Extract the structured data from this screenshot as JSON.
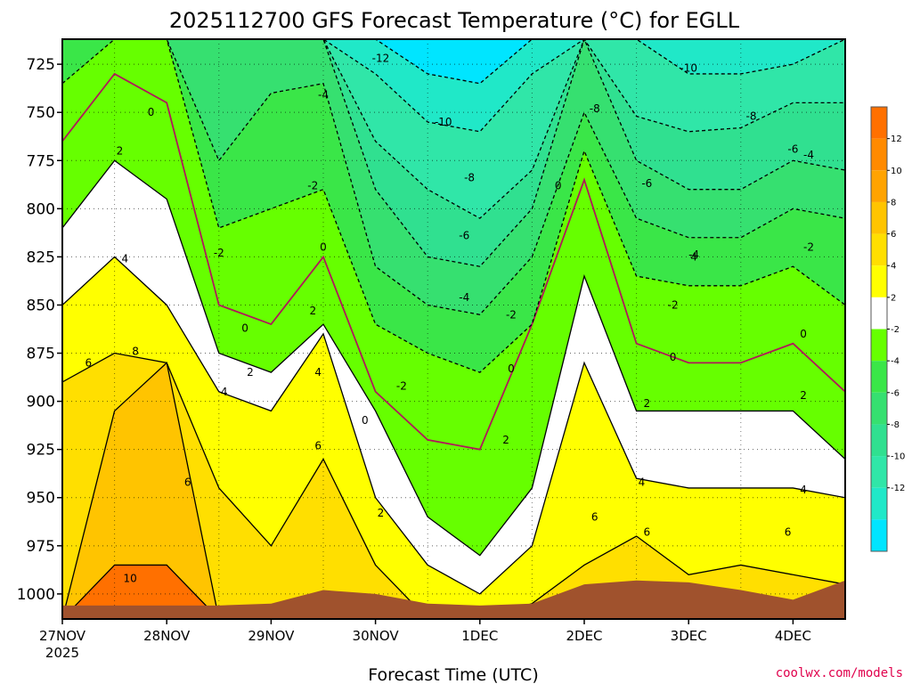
{
  "chart_data": {
    "type": "heatmap",
    "title": "2025112700 GFS Forecast Temperature (°C) for EGLL",
    "xlabel": "Forecast Time (UTC)",
    "ylabel": "",
    "credit": "coolwx.com/models",
    "x_ticks": [
      "27NOV",
      "28NOV",
      "29NOV",
      "30NOV",
      "1DEC",
      "2DEC",
      "3DEC",
      "4DEC"
    ],
    "x_year": "2025",
    "x_range_days": [
      0,
      7.5
    ],
    "y_ticks": [
      725,
      750,
      775,
      800,
      825,
      850,
      875,
      900,
      925,
      950,
      975,
      1000
    ],
    "y_range_hpa": [
      1013,
      712
    ],
    "y_axis": "pressure (hPa), inverted",
    "grid": true,
    "contour_interval": 2,
    "colorbar": {
      "levels": [
        -14,
        -12,
        -10,
        -8,
        -6,
        -4,
        -2,
        2,
        4,
        6,
        8,
        10,
        12,
        14
      ],
      "labels": [
        "12",
        "10",
        "8",
        "6",
        "4",
        "2",
        "-2",
        "-4",
        "-6",
        "-8",
        "-10",
        "-12"
      ],
      "colors": [
        "#00e5ff",
        "#20e8c8",
        "#30e6a8",
        "#30e090",
        "#36e070",
        "#3ae648",
        "#66ff00",
        "#ffffff",
        "#ffff00",
        "#ffdf00",
        "#ffc400",
        "#ffa300",
        "#ff8a00",
        "#ff7000"
      ]
    },
    "terrain_color": "#a0522d",
    "series": [
      {
        "level": 10,
        "x": [
          0.0,
          0.5,
          1.0,
          1.5,
          2.0,
          2.5,
          3.0,
          3.5,
          4.0,
          4.5,
          5.0,
          5.5,
          6.0,
          6.5,
          7.0,
          7.5
        ],
        "p": [
          1013,
          985,
          985,
          1013,
          1013,
          1013,
          1013,
          1013,
          1013,
          1013,
          1013,
          1013,
          1013,
          1013,
          1013,
          1013
        ]
      },
      {
        "level": 8,
        "x": [
          0.0,
          0.5,
          1.0,
          1.5,
          2.0,
          2.5,
          3.0,
          3.5,
          4.0,
          4.5,
          5.0,
          5.5,
          6.0,
          6.5,
          7.0,
          7.5
        ],
        "p": [
          1013,
          905,
          880,
          1013,
          1013,
          1013,
          1013,
          1013,
          1013,
          1013,
          1013,
          1013,
          1013,
          1013,
          1013,
          1013
        ]
      },
      {
        "level": 6,
        "x": [
          0.0,
          0.5,
          1.0,
          1.5,
          2.0,
          2.5,
          3.0,
          3.5,
          4.0,
          4.5,
          5.0,
          5.5,
          6.0,
          6.5,
          7.0,
          7.5
        ],
        "p": [
          890,
          875,
          880,
          945,
          975,
          930,
          985,
          1013,
          1013,
          1005,
          985,
          970,
          990,
          985,
          990,
          995
        ]
      },
      {
        "level": 4,
        "x": [
          0.0,
          0.5,
          1.0,
          1.5,
          2.0,
          2.5,
          3.0,
          3.5,
          4.0,
          4.5,
          5.0,
          5.5,
          6.0,
          6.5,
          7.0,
          7.5
        ],
        "p": [
          850,
          825,
          850,
          895,
          905,
          865,
          950,
          985,
          1000,
          975,
          880,
          940,
          945,
          945,
          945,
          950
        ]
      },
      {
        "level": 2,
        "x": [
          0.0,
          0.5,
          1.0,
          1.5,
          2.0,
          2.5,
          3.0,
          3.5,
          4.0,
          4.5,
          5.0,
          5.5,
          6.0,
          6.5,
          7.0,
          7.5
        ],
        "p": [
          810,
          775,
          795,
          875,
          885,
          860,
          905,
          960,
          980,
          945,
          835,
          905,
          905,
          905,
          905,
          930
        ]
      },
      {
        "level": 0,
        "x": [
          0.0,
          0.5,
          1.0,
          1.5,
          2.0,
          2.5,
          3.0,
          3.5,
          4.0,
          4.5,
          5.0,
          5.5,
          6.0,
          6.5,
          7.0,
          7.5
        ],
        "p": [
          765,
          730,
          745,
          850,
          860,
          825,
          895,
          920,
          925,
          860,
          785,
          870,
          880,
          880,
          870,
          895
        ]
      },
      {
        "level": -2,
        "x": [
          0.0,
          0.5,
          1.0,
          1.5,
          2.0,
          2.5,
          3.0,
          3.5,
          4.0,
          4.5,
          5.0,
          5.5,
          6.0,
          6.5,
          7.0,
          7.5
        ],
        "p": [
          735,
          712,
          712,
          810,
          800,
          790,
          860,
          875,
          885,
          860,
          770,
          835,
          840,
          840,
          830,
          850
        ]
      },
      {
        "level": -4,
        "x": [
          0.0,
          0.5,
          1.0,
          1.5,
          2.0,
          2.5,
          3.0,
          3.5,
          4.0,
          4.5,
          5.0,
          5.5,
          6.0,
          6.5,
          7.0,
          7.5
        ],
        "p": [
          712,
          712,
          712,
          775,
          740,
          735,
          830,
          850,
          855,
          825,
          750,
          805,
          815,
          815,
          800,
          805
        ]
      },
      {
        "level": -6,
        "x": [
          0.0,
          0.5,
          1.0,
          1.5,
          2.0,
          2.5,
          3.0,
          3.5,
          4.0,
          4.5,
          5.0,
          5.5,
          6.0,
          6.5,
          7.0,
          7.5
        ],
        "p": [
          712,
          712,
          712,
          712,
          712,
          712,
          790,
          825,
          830,
          800,
          712,
          775,
          790,
          790,
          775,
          780
        ]
      },
      {
        "level": -8,
        "x": [
          0.0,
          0.5,
          1.0,
          1.5,
          2.0,
          2.5,
          3.0,
          3.5,
          4.0,
          4.5,
          5.0,
          5.5,
          6.0,
          6.5,
          7.0,
          7.5
        ],
        "p": [
          712,
          712,
          712,
          712,
          712,
          712,
          765,
          790,
          805,
          780,
          712,
          752,
          760,
          758,
          745,
          745
        ]
      },
      {
        "level": -10,
        "x": [
          0.0,
          0.5,
          1.0,
          1.5,
          2.0,
          2.5,
          3.0,
          3.5,
          4.0,
          4.5,
          5.0,
          5.5,
          6.0,
          6.5,
          7.0,
          7.5
        ],
        "p": [
          712,
          712,
          712,
          712,
          712,
          712,
          730,
          755,
          760,
          730,
          712,
          712,
          730,
          730,
          725,
          712
        ]
      },
      {
        "level": -12,
        "x": [
          0.0,
          0.5,
          1.0,
          1.5,
          2.0,
          2.5,
          3.0,
          3.5,
          4.0,
          4.5,
          5.0,
          5.5,
          6.0,
          6.5,
          7.0,
          7.5
        ],
        "p": [
          712,
          712,
          712,
          712,
          712,
          712,
          712,
          730,
          735,
          712,
          712,
          712,
          712,
          712,
          712,
          712
        ]
      }
    ],
    "terrain": {
      "x": [
        0.0,
        0.5,
        1.0,
        1.5,
        2.0,
        2.5,
        3.0,
        3.5,
        4.0,
        4.5,
        5.0,
        5.5,
        6.0,
        6.5,
        7.0,
        7.5
      ],
      "p": [
        1006,
        1006,
        1006,
        1006,
        1005,
        998,
        1000,
        1005,
        1006,
        1005,
        995,
        993,
        994,
        998,
        1003,
        993
      ]
    },
    "contour_labels": [
      {
        "text": "-12",
        "x": 3.05,
        "p": 722
      },
      {
        "text": "-10",
        "x": 3.65,
        "p": 755
      },
      {
        "text": "-10",
        "x": 6.0,
        "p": 727
      },
      {
        "text": "-8",
        "x": 3.9,
        "p": 784
      },
      {
        "text": "-8",
        "x": 5.1,
        "p": 748
      },
      {
        "text": "-8",
        "x": 6.6,
        "p": 752
      },
      {
        "text": "-6",
        "x": 3.85,
        "p": 814
      },
      {
        "text": "-6",
        "x": 5.6,
        "p": 787
      },
      {
        "text": "-6",
        "x": 7.0,
        "p": 769
      },
      {
        "text": "-4",
        "x": 2.5,
        "p": 741
      },
      {
        "text": "-4",
        "x": 3.85,
        "p": 846
      },
      {
        "text": "-4",
        "x": 6.05,
        "p": 824
      },
      {
        "text": "-4",
        "x": 7.15,
        "p": 772
      },
      {
        "text": "-2",
        "x": 1.5,
        "p": 823
      },
      {
        "text": "-2",
        "x": 2.4,
        "p": 788
      },
      {
        "text": "-2",
        "x": 3.25,
        "p": 892
      },
      {
        "text": "-2",
        "x": 4.3,
        "p": 855
      },
      {
        "text": "-2",
        "x": 5.85,
        "p": 850
      },
      {
        "text": "-2",
        "x": 7.15,
        "p": 820
      },
      {
        "text": "0",
        "x": 0.85,
        "p": 750
      },
      {
        "text": "0",
        "x": 1.75,
        "p": 862
      },
      {
        "text": "0",
        "x": 2.5,
        "p": 820
      },
      {
        "text": "0",
        "x": 2.9,
        "p": 910
      },
      {
        "text": "0",
        "x": 4.3,
        "p": 883
      },
      {
        "text": "0",
        "x": 4.75,
        "p": 788
      },
      {
        "text": "0",
        "x": 5.85,
        "p": 877
      },
      {
        "text": "0",
        "x": 7.1,
        "p": 865
      },
      {
        "text": "2",
        "x": 0.55,
        "p": 770
      },
      {
        "text": "2",
        "x": 1.8,
        "p": 885
      },
      {
        "text": "2",
        "x": 2.4,
        "p": 853
      },
      {
        "text": "2",
        "x": 3.05,
        "p": 958
      },
      {
        "text": "2",
        "x": 4.25,
        "p": 920
      },
      {
        "text": "2",
        "x": 5.6,
        "p": 901
      },
      {
        "text": "2",
        "x": 7.1,
        "p": 897
      },
      {
        "text": "4",
        "x": 0.6,
        "p": 826
      },
      {
        "text": "4",
        "x": 1.55,
        "p": 895
      },
      {
        "text": "4",
        "x": 2.45,
        "p": 885
      },
      {
        "text": "4",
        "x": 5.55,
        "p": 942
      },
      {
        "text": "4",
        "x": 6.05,
        "p": 825
      },
      {
        "text": "4",
        "x": 7.1,
        "p": 946
      },
      {
        "text": "6",
        "x": 0.25,
        "p": 880
      },
      {
        "text": "6",
        "x": 1.2,
        "p": 942
      },
      {
        "text": "6",
        "x": 2.45,
        "p": 923
      },
      {
        "text": "6",
        "x": 5.1,
        "p": 960
      },
      {
        "text": "6",
        "x": 5.6,
        "p": 968
      },
      {
        "text": "6",
        "x": 6.95,
        "p": 968
      },
      {
        "text": "8",
        "x": 0.7,
        "p": 874
      },
      {
        "text": "10",
        "x": 0.65,
        "p": 992
      }
    ]
  }
}
